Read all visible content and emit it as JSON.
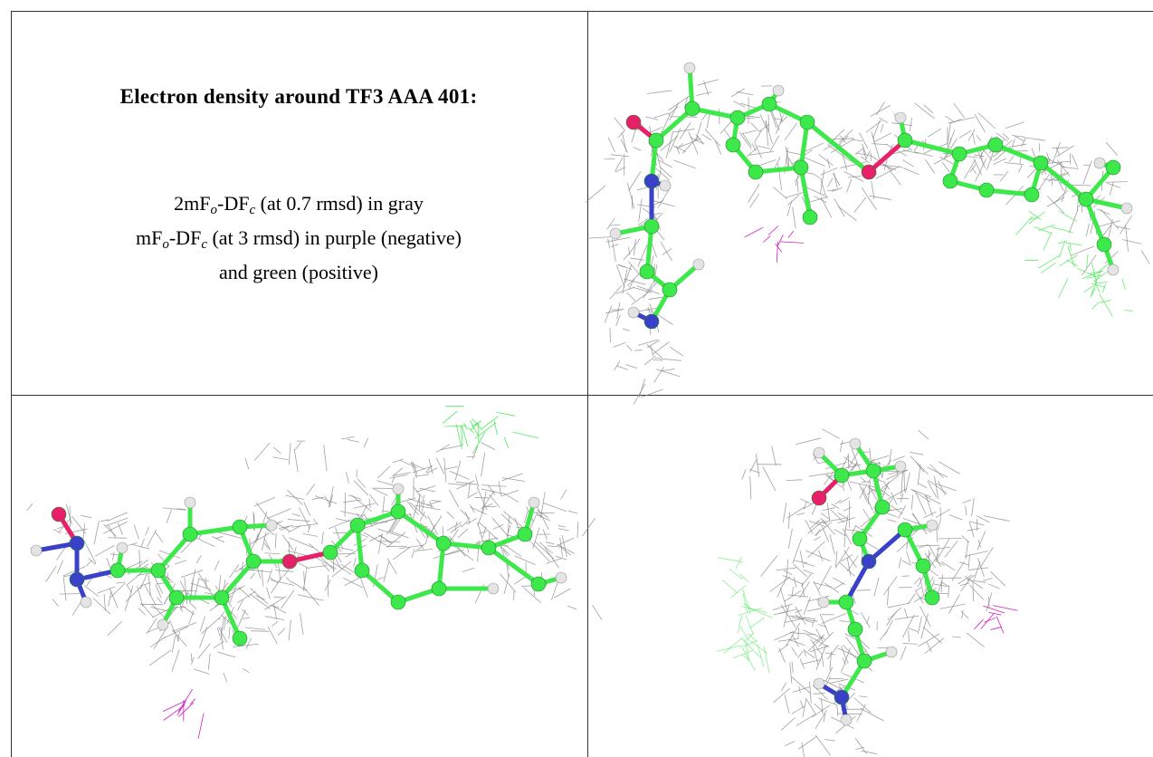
{
  "panel_text": {
    "title": "Electron density around TF3 AAA 401:",
    "lines": [
      [
        "2mF",
        "o",
        "-DF",
        "c",
        " (at 0.7 rmsd) in gray"
      ],
      [
        "mF",
        "o",
        "-DF",
        "c",
        " (at 3 rmsd) in purple (negative)"
      ],
      [
        "and green (positive)"
      ]
    ]
  }
}
